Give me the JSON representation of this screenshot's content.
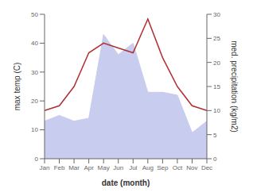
{
  "chart_data": {
    "type": "line",
    "categories": [
      "Jan",
      "Feb",
      "Mar",
      "Apr",
      "May",
      "Jun",
      "Jul",
      "Aug",
      "Sep",
      "Oct",
      "Nov",
      "Dec"
    ],
    "series": [
      {
        "type": "area",
        "color": "#c8ccee",
        "values": [
          13,
          15,
          13,
          14,
          43,
          36,
          40,
          23,
          23,
          22,
          9,
          13
        ]
      },
      {
        "type": "line",
        "color": "#b03030",
        "axis": "y2",
        "values": [
          10,
          11,
          15,
          22,
          24,
          23,
          22,
          29,
          21,
          15,
          11,
          10
        ]
      }
    ],
    "xlabel": "date (month)",
    "ylabel": "max temp (C)",
    "y2label": "med. precipitation (kg/m2)",
    "ylim": [
      0,
      50
    ],
    "yticks": [
      0,
      10,
      20,
      30,
      40,
      50
    ],
    "y2lim": [
      0,
      30
    ],
    "y2ticks": [
      0,
      5,
      10,
      15,
      20,
      25,
      30
    ],
    "grid": false
  }
}
